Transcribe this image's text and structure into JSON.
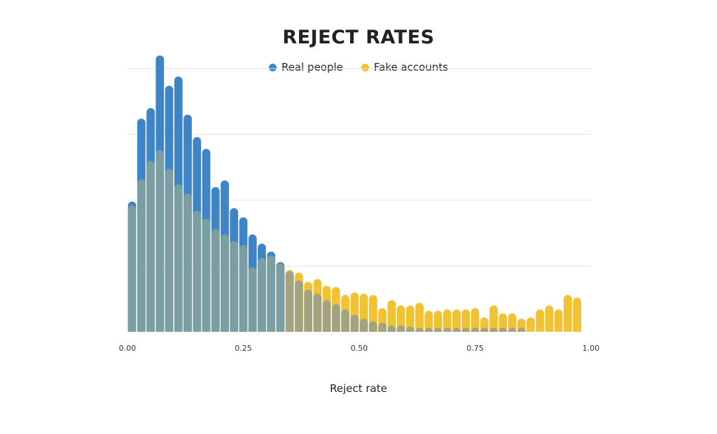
{
  "chart_data": {
    "type": "bar",
    "title": "REJECT RATES",
    "xlabel": "Reject rate",
    "ylabel": "",
    "xlim": [
      0,
      1
    ],
    "ylim": [
      0,
      200
    ],
    "grid": true,
    "legend_position": "top-center",
    "x_ticks": [
      "0.00",
      "0.25",
      "0.50",
      "0.75",
      "1.00"
    ],
    "x_tick_values": [
      0,
      0.25,
      0.5,
      0.75,
      1.0
    ],
    "bin_width": 0.02,
    "x": [
      0.01,
      0.03,
      0.05,
      0.07,
      0.09,
      0.11,
      0.13,
      0.15,
      0.17,
      0.19,
      0.21,
      0.23,
      0.25,
      0.27,
      0.29,
      0.31,
      0.33,
      0.35,
      0.37,
      0.39,
      0.41,
      0.43,
      0.45,
      0.47,
      0.49,
      0.51,
      0.53,
      0.55,
      0.57,
      0.59,
      0.61,
      0.63,
      0.65,
      0.67,
      0.69,
      0.71,
      0.73,
      0.75,
      0.77,
      0.79,
      0.81,
      0.83,
      0.85,
      0.87,
      0.89,
      0.91,
      0.93,
      0.95,
      0.97,
      0.99
    ],
    "series": [
      {
        "name": "Real people",
        "color": "#3d85c6",
        "values": [
          99,
          162,
          170,
          210,
          187,
          194,
          165,
          148,
          139,
          110,
          115,
          94,
          87,
          74,
          67,
          61,
          53,
          46,
          39,
          32,
          29,
          24,
          21,
          17,
          13,
          10,
          8,
          7,
          5,
          5,
          4,
          3,
          3,
          2,
          2,
          2,
          2,
          1,
          1,
          1,
          1,
          1,
          1,
          0,
          0,
          0,
          0,
          0,
          0,
          0
        ]
      },
      {
        "name": "Fake accounts",
        "color": "#f1c232",
        "values": [
          96,
          116,
          130,
          138,
          124,
          112,
          105,
          92,
          86,
          78,
          74,
          69,
          66,
          49,
          56,
          58,
          52,
          47,
          45,
          38,
          40,
          35,
          34,
          28,
          30,
          29,
          28,
          18,
          24,
          20,
          20,
          22,
          16,
          16,
          17,
          17,
          17,
          18,
          11,
          20,
          14,
          14,
          10,
          11,
          17,
          20,
          17,
          28,
          26,
          0
        ]
      }
    ]
  },
  "legend": {
    "real_label": "Real people",
    "fake_label": "Fake accounts",
    "real_color": "#3d85c6",
    "fake_color": "#f1c232",
    "overlap_color": "#7a9ea1"
  }
}
